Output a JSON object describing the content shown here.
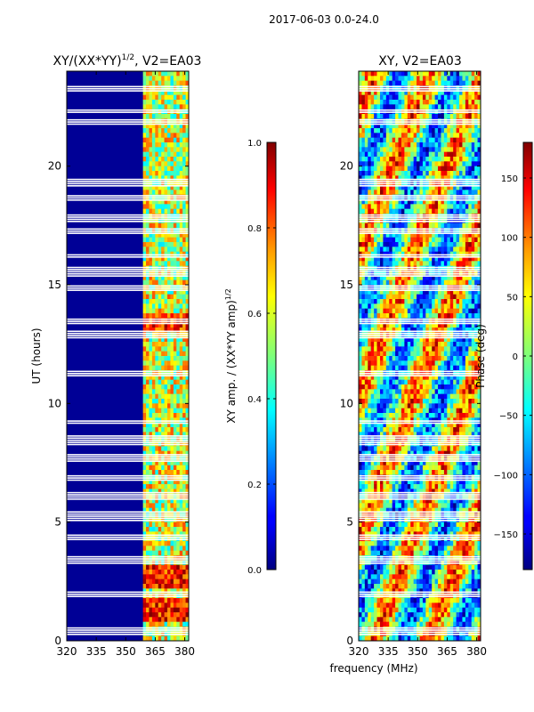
{
  "figure": {
    "suptitle": "2017-06-03 0.0-24.0",
    "xlabel": "frequency (MHz)"
  },
  "chart_data": [
    {
      "type": "heatmap",
      "title_main": "XY/(XX*YY)",
      "title_exp": "1/2",
      "title_tail": ", V2=EA03",
      "xlabel": "",
      "ylabel": "UT (hours)",
      "xlim": [
        320,
        382
      ],
      "ylim": [
        0,
        24
      ],
      "xticks": [
        320,
        335,
        350,
        365,
        380
      ],
      "yticks": [
        0,
        5,
        10,
        15,
        20
      ],
      "colorbar": {
        "label_main": "XY amp. / (XX*YY amp)",
        "label_exp": "1/2",
        "range": [
          0.0,
          1.0
        ],
        "ticks": [
          "0.0",
          "0.2",
          "0.4",
          "0.6",
          "0.8",
          "1.0"
        ],
        "tick_values": [
          0.0,
          0.2,
          0.4,
          0.6,
          0.8,
          1.0
        ]
      }
    },
    {
      "type": "heatmap",
      "title_main": "XY, V2=EA03",
      "xlabel": "",
      "ylabel": "",
      "xlim": [
        320,
        382
      ],
      "ylim": [
        0,
        24
      ],
      "xticks": [
        320,
        335,
        350,
        365,
        380
      ],
      "yticks": [
        0,
        5,
        10,
        15,
        20
      ],
      "colorbar": {
        "label_main": "Phase (deg)",
        "range": [
          -180,
          180
        ],
        "ticks": [
          "−150",
          "−100",
          "−50",
          "0",
          "50",
          "100",
          "150"
        ],
        "tick_values": [
          -150,
          -100,
          -50,
          0,
          50,
          100,
          150
        ]
      }
    }
  ]
}
